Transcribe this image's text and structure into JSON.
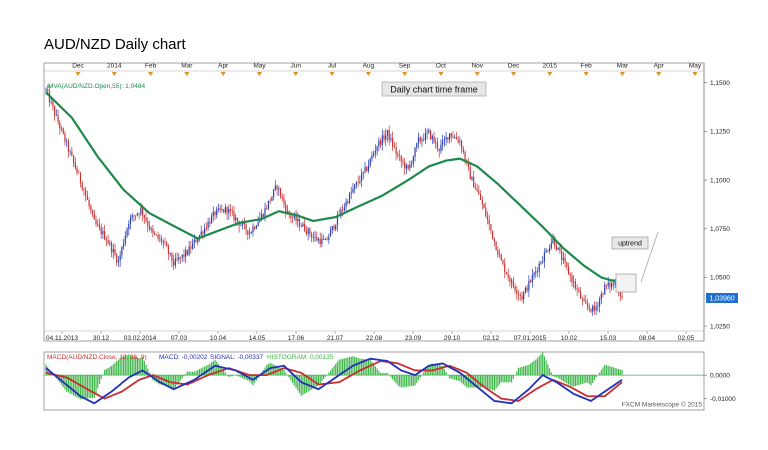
{
  "page": {
    "title": "AUD/NZD Daily chart"
  },
  "chart_data": [
    {
      "type": "candlestick",
      "title": "AUD/NZD Daily chart",
      "annotation_top": "Daily chart time frame",
      "annotation_trend": "uptrend",
      "top_months": [
        "Dec",
        "2014",
        "Feb",
        "Mar",
        "Apr",
        "May",
        "Jun",
        "Jul",
        "Aug",
        "Sep",
        "Oct",
        "Nov",
        "Dec",
        "2015",
        "Feb",
        "Mar",
        "Apr",
        "May"
      ],
      "date_ticks": [
        "04.11.2013",
        "30.12",
        "03.02.2014",
        "07.03",
        "10.04",
        "14.05",
        "17.06",
        "21.07",
        "22.08",
        "23.09",
        "29.10",
        "02.12",
        "07.01.2015",
        "10.02",
        "15.03",
        "08.04",
        "02.05"
      ],
      "y_ticks": [
        "1,1500",
        "1,1250",
        "1,1000",
        "1,0750",
        "1,0500",
        "1,0250"
      ],
      "ylim": [
        1.0225,
        1.156
      ],
      "last_price": "1,03960",
      "last_value": 1.0396,
      "mva_label": "MVA(AUD/NZD.Open,55): 1,0484",
      "price_keypoints": [
        [
          0,
          1.146
        ],
        [
          12,
          1.118
        ],
        [
          22,
          1.095
        ],
        [
          28,
          1.078
        ],
        [
          35,
          1.07
        ],
        [
          42,
          1.058
        ],
        [
          48,
          1.079
        ],
        [
          55,
          1.085
        ],
        [
          62,
          1.072
        ],
        [
          68,
          1.068
        ],
        [
          74,
          1.057
        ],
        [
          82,
          1.063
        ],
        [
          90,
          1.073
        ],
        [
          98,
          1.083
        ],
        [
          105,
          1.085
        ],
        [
          112,
          1.078
        ],
        [
          118,
          1.073
        ],
        [
          126,
          1.083
        ],
        [
          134,
          1.097
        ],
        [
          140,
          1.083
        ],
        [
          148,
          1.077
        ],
        [
          156,
          1.07
        ],
        [
          162,
          1.068
        ],
        [
          170,
          1.082
        ],
        [
          178,
          1.095
        ],
        [
          186,
          1.106
        ],
        [
          192,
          1.118
        ],
        [
          198,
          1.124
        ],
        [
          204,
          1.112
        ],
        [
          210,
          1.105
        ],
        [
          216,
          1.12
        ],
        [
          222,
          1.124
        ],
        [
          228,
          1.116
        ],
        [
          234,
          1.124
        ],
        [
          240,
          1.12
        ],
        [
          246,
          1.102
        ],
        [
          252,
          1.09
        ],
        [
          258,
          1.074
        ],
        [
          264,
          1.058
        ],
        [
          270,
          1.047
        ],
        [
          276,
          1.04
        ],
        [
          282,
          1.05
        ],
        [
          288,
          1.06
        ],
        [
          294,
          1.07
        ],
        [
          300,
          1.058
        ],
        [
          306,
          1.047
        ],
        [
          312,
          1.036
        ],
        [
          318,
          1.033
        ],
        [
          324,
          1.045
        ],
        [
          330,
          1.047
        ],
        [
          334,
          1.04
        ]
      ],
      "mva_keypoints": [
        [
          0,
          1.145
        ],
        [
          15,
          1.132
        ],
        [
          30,
          1.112
        ],
        [
          45,
          1.095
        ],
        [
          60,
          1.083
        ],
        [
          75,
          1.076
        ],
        [
          88,
          1.07
        ],
        [
          100,
          1.074
        ],
        [
          112,
          1.078
        ],
        [
          125,
          1.08
        ],
        [
          135,
          1.084
        ],
        [
          145,
          1.082
        ],
        [
          155,
          1.079
        ],
        [
          168,
          1.081
        ],
        [
          180,
          1.086
        ],
        [
          195,
          1.092
        ],
        [
          210,
          1.1
        ],
        [
          222,
          1.107
        ],
        [
          232,
          1.11
        ],
        [
          240,
          1.111
        ],
        [
          250,
          1.107
        ],
        [
          262,
          1.098
        ],
        [
          275,
          1.087
        ],
        [
          288,
          1.076
        ],
        [
          300,
          1.065
        ],
        [
          312,
          1.056
        ],
        [
          322,
          1.05
        ],
        [
          330,
          1.048
        ]
      ],
      "macd": {
        "label": "MACD(AUD/NZD.Close, 12, 26, 9)",
        "macd_value": "MACD: -0,00202",
        "signal_value": "SIGNAL: -0,00337",
        "histogram_value": "HISTOGRAM: 0,00135",
        "y_ticks": [
          "0,0000",
          "-0,01000"
        ],
        "macd_keypoints": [
          [
            0,
            0.003
          ],
          [
            10,
            -0.003
          ],
          [
            20,
            -0.009
          ],
          [
            28,
            -0.012
          ],
          [
            38,
            -0.007
          ],
          [
            48,
            -0.001
          ],
          [
            56,
            0.002
          ],
          [
            66,
            -0.003
          ],
          [
            74,
            -0.006
          ],
          [
            86,
            -0.002
          ],
          [
            98,
            0.004
          ],
          [
            110,
            0.002
          ],
          [
            120,
            -0.002
          ],
          [
            130,
            0.003
          ],
          [
            138,
            0.004
          ],
          [
            148,
            -0.003
          ],
          [
            158,
            -0.006
          ],
          [
            168,
            -0.001
          ],
          [
            178,
            0.004
          ],
          [
            188,
            0.007
          ],
          [
            198,
            0.006
          ],
          [
            206,
            0.002
          ],
          [
            214,
            0.0
          ],
          [
            222,
            0.004
          ],
          [
            230,
            0.005
          ],
          [
            240,
            0.001
          ],
          [
            250,
            -0.005
          ],
          [
            260,
            -0.011
          ],
          [
            270,
            -0.012
          ],
          [
            280,
            -0.006
          ],
          [
            288,
            0.0
          ],
          [
            296,
            -0.003
          ],
          [
            306,
            -0.008
          ],
          [
            316,
            -0.011
          ],
          [
            326,
            -0.006
          ],
          [
            334,
            -0.002
          ]
        ],
        "signal_keypoints": [
          [
            0,
            0.001
          ],
          [
            12,
            -0.001
          ],
          [
            24,
            -0.006
          ],
          [
            34,
            -0.01
          ],
          [
            44,
            -0.007
          ],
          [
            54,
            -0.002
          ],
          [
            62,
            0.0
          ],
          [
            72,
            -0.003
          ],
          [
            82,
            -0.004
          ],
          [
            94,
            0.0
          ],
          [
            106,
            0.003
          ],
          [
            118,
            0.0
          ],
          [
            128,
            0.0
          ],
          [
            138,
            0.003
          ],
          [
            148,
            0.001
          ],
          [
            158,
            -0.004
          ],
          [
            170,
            -0.003
          ],
          [
            182,
            0.002
          ],
          [
            194,
            0.006
          ],
          [
            204,
            0.005
          ],
          [
            214,
            0.002
          ],
          [
            224,
            0.002
          ],
          [
            234,
            0.004
          ],
          [
            244,
            0.001
          ],
          [
            254,
            -0.005
          ],
          [
            264,
            -0.01
          ],
          [
            274,
            -0.011
          ],
          [
            284,
            -0.006
          ],
          [
            294,
            -0.002
          ],
          [
            304,
            -0.005
          ],
          [
            314,
            -0.009
          ],
          [
            324,
            -0.009
          ],
          [
            334,
            -0.003
          ]
        ]
      },
      "footer": "FXCM Marketscope © 2015"
    }
  ]
}
